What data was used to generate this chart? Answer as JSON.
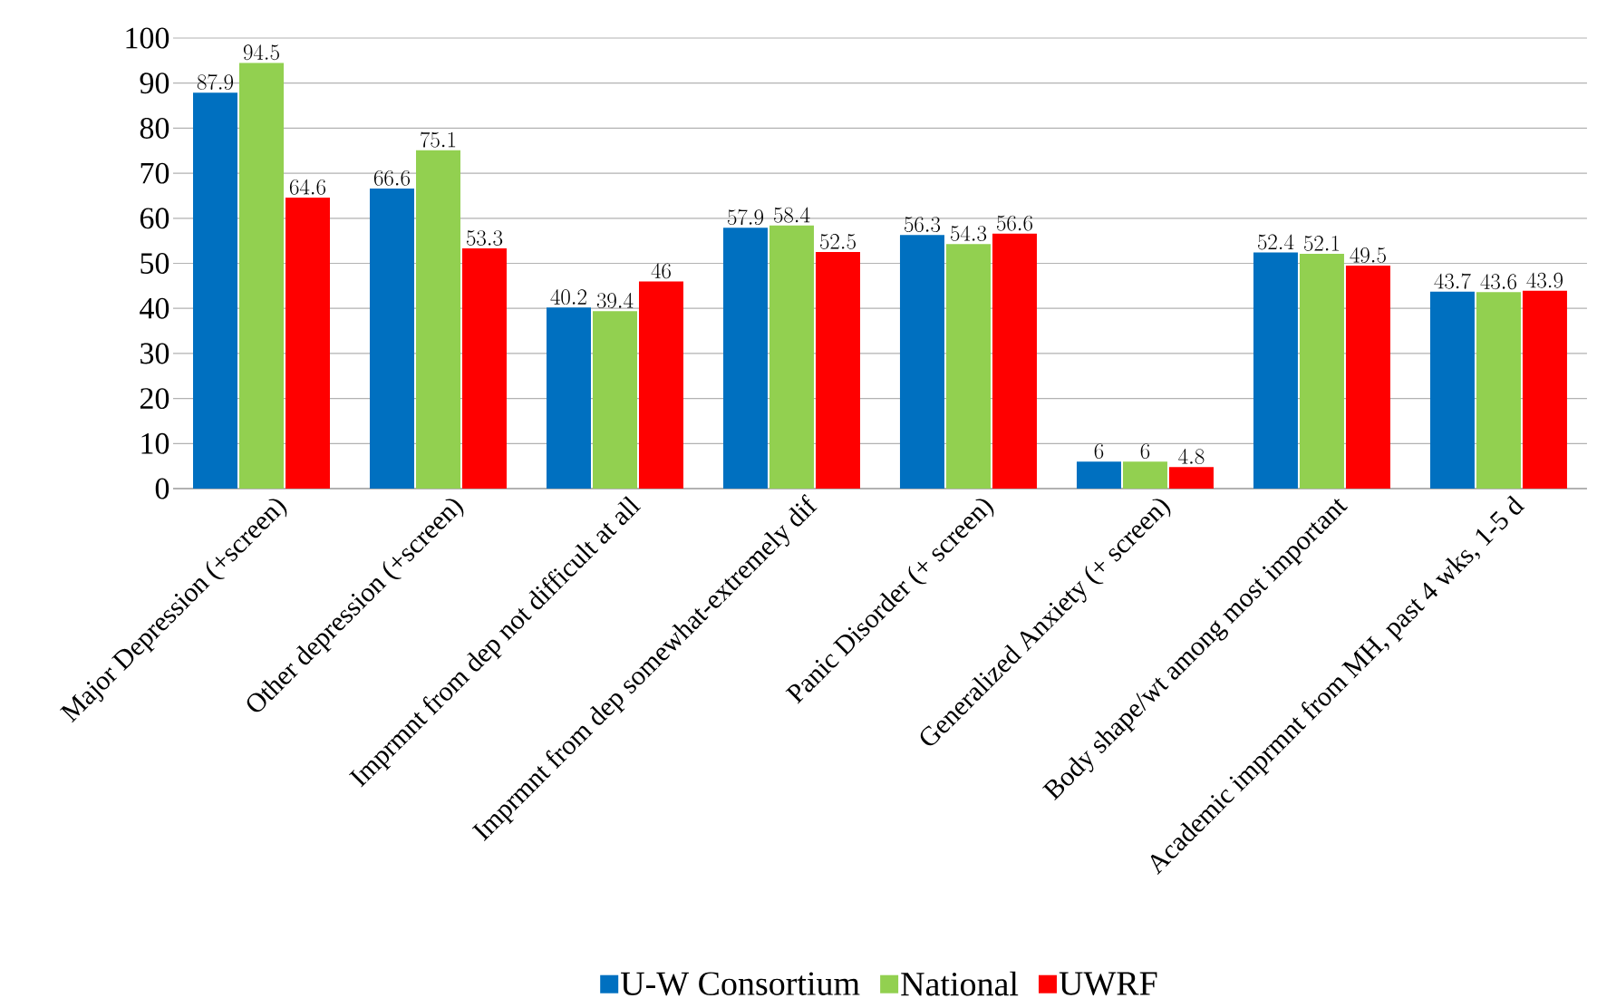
{
  "chart_data": {
    "type": "bar",
    "categories": [
      "Major Depression (+screen)",
      "Other depression (+screen)",
      "Imprmnt from dep not difficult at all",
      "Imprmnt from dep somewhat-extremely dif",
      "Panic Disorder (+ screen)",
      "Generalized Anxiety (+ screen)",
      "Body shape/wt among most important",
      "Academic imprmnt from MH, past 4 wks, 1-5 d"
    ],
    "series": [
      {
        "name": "U-W Consortium",
        "color": "#0070c0",
        "values": [
          87.9,
          66.6,
          40.2,
          57.9,
          56.3,
          6,
          52.4,
          43.7
        ]
      },
      {
        "name": "National",
        "color": "#92d050",
        "values": [
          94.5,
          75.1,
          39.4,
          58.4,
          54.3,
          6,
          52.1,
          43.6
        ]
      },
      {
        "name": "UWRF",
        "color": "#ff0000",
        "values": [
          64.6,
          53.3,
          46,
          52.5,
          56.6,
          4.8,
          49.5,
          43.9
        ]
      }
    ],
    "ylim": [
      0,
      100
    ],
    "yticks": [
      0,
      10,
      20,
      30,
      40,
      50,
      60,
      70,
      80,
      90,
      100
    ],
    "grid": "y",
    "legend": "bottom",
    "data_labels": true
  }
}
